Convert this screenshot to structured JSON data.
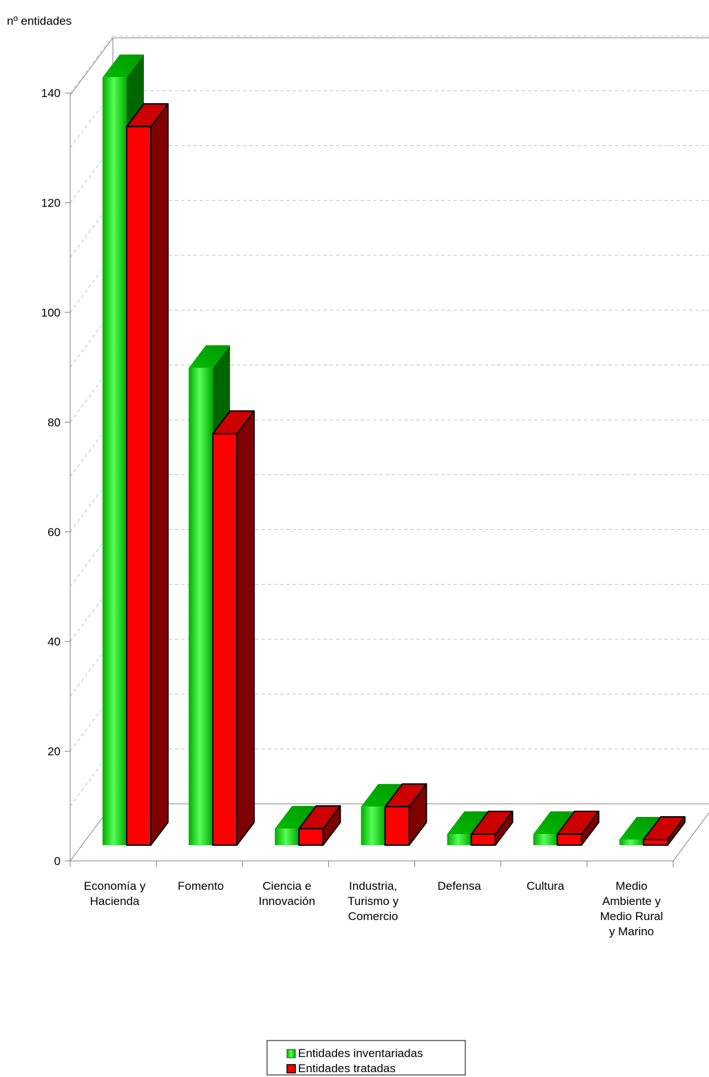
{
  "chart_data": {
    "type": "bar",
    "style": "3d-clustered",
    "title": "",
    "ylabel": "nº entidades",
    "xlabel": "",
    "ylim": [
      0,
      140
    ],
    "yticks": [
      0,
      20,
      40,
      60,
      80,
      100,
      120,
      140
    ],
    "grid": true,
    "legend_position": "bottom",
    "categories": [
      [
        "Economía y",
        "Hacienda"
      ],
      [
        "Fomento"
      ],
      [
        "Ciencia e",
        "Innovación"
      ],
      [
        "Industria,",
        "Turismo y",
        "Comercio"
      ],
      [
        "Defensa"
      ],
      [
        "Cultura"
      ],
      [
        "Medio",
        "Ambiente y",
        "Medio Rural",
        "y Marino"
      ]
    ],
    "series": [
      {
        "name": "Entidades inventariadas",
        "values": [
          140,
          87,
          3,
          7,
          2,
          2,
          1
        ],
        "color": "#00cc00",
        "color_dark": "#006600"
      },
      {
        "name": "Entidades tratadas",
        "values": [
          131,
          75,
          3,
          7,
          2,
          2,
          1
        ],
        "color": "#ff0000",
        "color_dark": "#800000"
      }
    ]
  }
}
